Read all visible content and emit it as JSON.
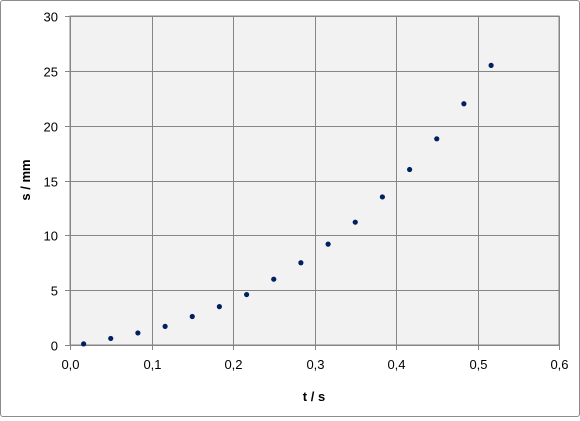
{
  "chart_data": {
    "type": "scatter",
    "xlabel": "t / s",
    "ylabel": "s / mm",
    "xlim": [
      0,
      0.6
    ],
    "ylim": [
      0,
      30
    ],
    "x_ticks": [
      "0,0",
      "0,1",
      "0,2",
      "0,3",
      "0,4",
      "0,5",
      "0,6"
    ],
    "y_ticks": [
      "0",
      "5",
      "10",
      "15",
      "20",
      "25",
      "30"
    ],
    "grid": true,
    "legend": "none",
    "colors": {
      "plot_background": "#f2f2f2",
      "grid": "#868686",
      "marker": "#002060"
    },
    "series": [
      {
        "x": [
          0.0167,
          0.05,
          0.0833,
          0.1167,
          0.15,
          0.1833,
          0.2167,
          0.25,
          0.2833,
          0.3167,
          0.35,
          0.3833,
          0.4167,
          0.45,
          0.4833,
          0.5167
        ],
        "y": [
          0.1,
          0.6,
          1.1,
          1.7,
          2.6,
          3.5,
          4.6,
          6.0,
          7.5,
          9.2,
          11.2,
          13.5,
          16.0,
          18.8,
          22.0,
          25.5
        ]
      }
    ]
  }
}
